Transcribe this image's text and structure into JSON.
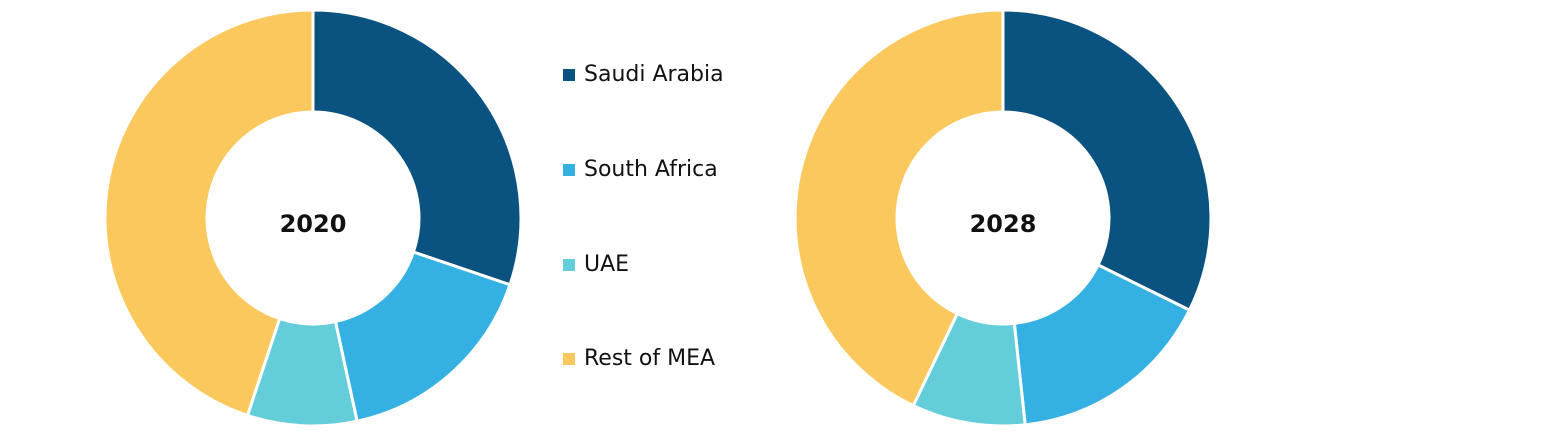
{
  "legend": {
    "labels": [
      "Saudi Arabia",
      "South Africa",
      "UAE",
      "Rest of MEA"
    ],
    "colors": [
      "#0a527f",
      "#35b0e2",
      "#63ced9",
      "#fbc85e"
    ]
  },
  "chart_data": [
    {
      "type": "pie",
      "title": "2020",
      "values": [
        30.2,
        16.4,
        8.5,
        44.9
      ]
    },
    {
      "type": "pie",
      "title": "2028",
      "values": [
        32.3,
        16.0,
        8.8,
        42.9
      ]
    }
  ]
}
